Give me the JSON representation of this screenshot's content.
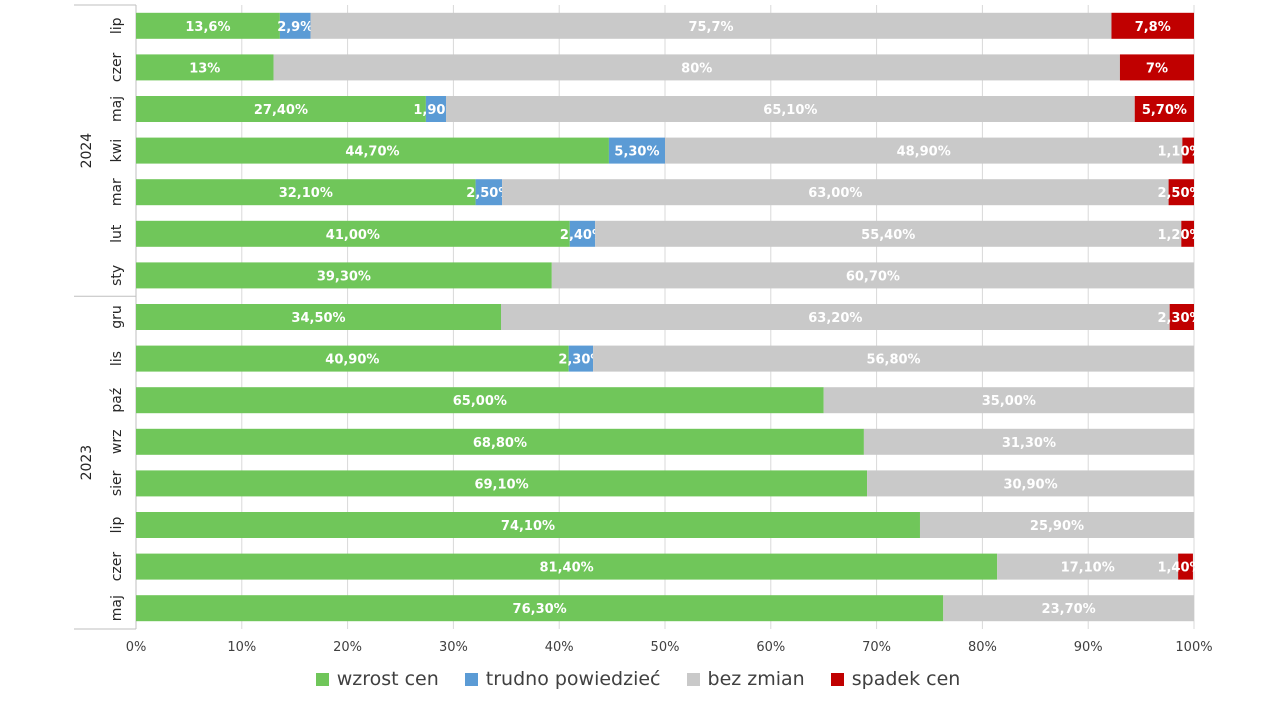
{
  "chart_data": {
    "type": "bar",
    "orientation": "horizontal",
    "stacked": "percent",
    "groups": [
      {
        "label": "2024",
        "categories": [
          "lip",
          "czer",
          "maj",
          "kwi",
          "mar",
          "lut",
          "sty"
        ]
      },
      {
        "label": "2023",
        "categories": [
          "gru",
          "lis",
          "paź",
          "wrz",
          "sier",
          "lip",
          "czer",
          "maj"
        ]
      }
    ],
    "series": [
      {
        "name": "wzrost cen",
        "color": "#70c65a",
        "values": [
          13.6,
          13,
          27.4,
          44.7,
          32.1,
          41.0,
          39.3,
          34.5,
          40.9,
          65.0,
          68.8,
          69.1,
          74.1,
          81.4,
          76.3
        ],
        "labels": [
          "13,6%",
          "13%",
          "27,40%",
          "44,70%",
          "32,10%",
          "41,00%",
          "39,30%",
          "34,50%",
          "40,90%",
          "65,00%",
          "68,80%",
          "69,10%",
          "74,10%",
          "81,40%",
          "76,30%"
        ]
      },
      {
        "name": "trudno powiedzieć",
        "color": "#5b9bd5",
        "values": [
          2.9,
          0,
          1.9,
          5.3,
          2.5,
          2.4,
          0,
          0,
          2.3,
          0,
          0,
          0,
          0,
          0,
          0
        ],
        "labels": [
          "2,9%",
          "",
          "1,90%",
          "5,30%",
          "2,50%",
          "2,40%",
          "",
          "",
          "2,30%",
          "",
          "",
          "",
          "",
          "",
          ""
        ]
      },
      {
        "name": "bez zmian",
        "color": "#c9c9c9",
        "values": [
          75.7,
          80,
          65.1,
          48.9,
          63.0,
          55.4,
          60.7,
          63.2,
          56.8,
          35.0,
          31.3,
          30.9,
          25.9,
          17.1,
          23.7
        ],
        "labels": [
          "75,7%",
          "80%",
          "65,10%",
          "48,90%",
          "63,00%",
          "55,40%",
          "60,70%",
          "63,20%",
          "56,80%",
          "35,00%",
          "31,30%",
          "30,90%",
          "25,90%",
          "17,10%",
          "23,70%"
        ]
      },
      {
        "name": "spadek cen",
        "color": "#c00000",
        "values": [
          7.8,
          7,
          5.7,
          1.1,
          2.5,
          1.2,
          0,
          2.3,
          0,
          0,
          0,
          0,
          0,
          1.4,
          0
        ],
        "labels": [
          "7,8%",
          "7%",
          "5,70%",
          "1,10%",
          "2,50%",
          "1,20%",
          "",
          "2,30%",
          "",
          "",
          "",
          "",
          "",
          "1,40%",
          ""
        ]
      }
    ],
    "xlim": [
      0,
      100
    ],
    "x_ticks": [
      0,
      10,
      20,
      30,
      40,
      50,
      60,
      70,
      80,
      90,
      100
    ],
    "x_tick_labels": [
      "0%",
      "10%",
      "20%",
      "30%",
      "40%",
      "50%",
      "60%",
      "70%",
      "80%",
      "90%",
      "100%"
    ],
    "grid": true,
    "legend_position": "bottom"
  }
}
